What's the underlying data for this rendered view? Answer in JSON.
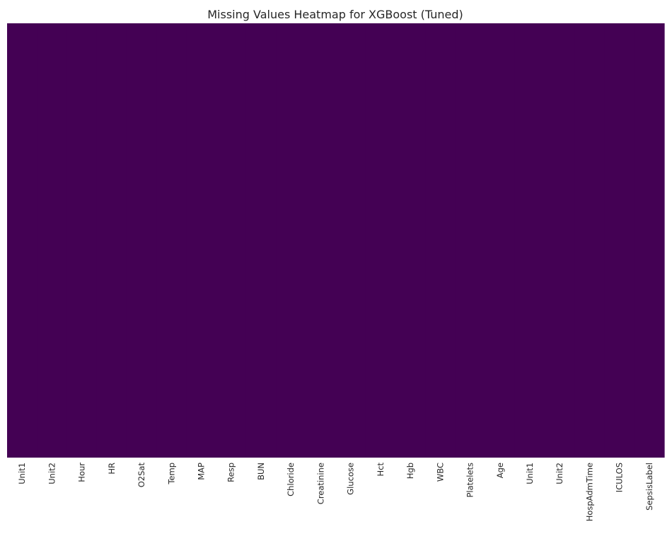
{
  "chart_data": {
    "type": "heatmap",
    "title": "Missing Values Heatmap for XGBoost (Tuned)",
    "xlabel": "",
    "ylabel": "",
    "columns": [
      "Unit1",
      "Unit2",
      "Hour",
      "HR",
      "O2Sat",
      "Temp",
      "MAP",
      "Resp",
      "BUN",
      "Chloride",
      "Creatinine",
      "Glucose",
      "Hct",
      "Hgb",
      "WBC",
      "Platelets",
      "Age",
      "Unit1",
      "Unit2",
      "HospAdmTime",
      "ICULOS",
      "SepsisLabel"
    ],
    "missing": [
      0,
      0,
      0,
      0,
      0,
      0,
      0,
      0,
      0,
      0,
      0,
      0,
      0,
      0,
      0,
      0,
      0,
      0,
      0,
      0,
      0,
      0
    ],
    "colorbar": false,
    "y_ticks_shown": false,
    "colors": {
      "present": "#440154",
      "missing": "#fde725"
    }
  }
}
